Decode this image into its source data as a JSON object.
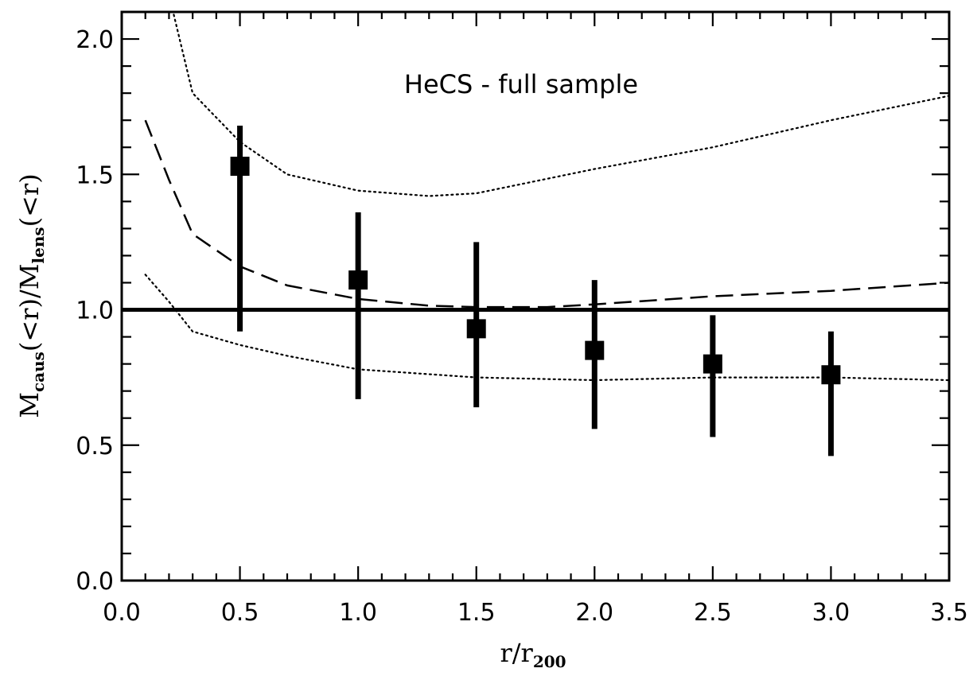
{
  "chart_data": {
    "type": "scatter",
    "annotation": "HeCS - full sample",
    "xlabel": {
      "main": "r/r",
      "sub": "200"
    },
    "ylabel": {
      "part1": "M",
      "sub1": "caus",
      "part2": "(<r)/M",
      "sub2": "lens",
      "part3": "(<r)"
    },
    "xlim": [
      0.0,
      3.5
    ],
    "ylim": [
      0.0,
      2.1
    ],
    "x_ticks": [
      0.0,
      0.5,
      1.0,
      1.5,
      2.0,
      2.5,
      3.0,
      3.5
    ],
    "x_tick_labels": [
      "0.0",
      "0.5",
      "1.0",
      "1.5",
      "2.0",
      "2.5",
      "3.0",
      "3.5"
    ],
    "x_minor_step": 0.1,
    "y_ticks": [
      0.0,
      0.5,
      1.0,
      1.5,
      2.0
    ],
    "y_tick_labels": [
      "0.0",
      "0.5",
      "1.0",
      "1.5",
      "2.0"
    ],
    "y_minor_step": 0.1,
    "grid": false,
    "series": [
      {
        "style": "square-with-errorbars",
        "points": [
          {
            "x": 0.5,
            "y": 1.53,
            "ylo": 0.92,
            "yhi": 1.68
          },
          {
            "x": 1.0,
            "y": 1.11,
            "ylo": 0.67,
            "yhi": 1.36
          },
          {
            "x": 1.5,
            "y": 0.93,
            "ylo": 0.64,
            "yhi": 1.25
          },
          {
            "x": 2.0,
            "y": 0.85,
            "ylo": 0.56,
            "yhi": 1.11
          },
          {
            "x": 2.5,
            "y": 0.8,
            "ylo": 0.53,
            "yhi": 0.98
          },
          {
            "x": 3.0,
            "y": 0.76,
            "ylo": 0.46,
            "yhi": 0.92
          }
        ]
      },
      {
        "style": "solid-reference",
        "x": [
          0.0,
          3.5
        ],
        "y": [
          1.0,
          1.0
        ]
      },
      {
        "style": "dashed",
        "x": [
          0.1,
          0.2,
          0.3,
          0.5,
          0.7,
          1.0,
          1.3,
          1.5,
          1.8,
          2.0,
          2.5,
          3.0,
          3.5
        ],
        "y": [
          1.7,
          1.48,
          1.28,
          1.16,
          1.09,
          1.04,
          1.015,
          1.01,
          1.01,
          1.02,
          1.05,
          1.07,
          1.1
        ]
      },
      {
        "style": "dotted-upper",
        "x": [
          0.22,
          0.3,
          0.5,
          0.7,
          1.0,
          1.3,
          1.5,
          2.0,
          2.5,
          3.0,
          3.5
        ],
        "y": [
          2.09,
          1.8,
          1.62,
          1.5,
          1.44,
          1.42,
          1.43,
          1.52,
          1.6,
          1.7,
          1.79
        ],
        "y_at_cut": 2.09
      },
      {
        "style": "dotted-lower",
        "x": [
          0.1,
          0.2,
          0.3,
          0.5,
          0.7,
          1.0,
          1.5,
          2.0,
          2.5,
          3.0,
          3.5
        ],
        "y": [
          1.13,
          1.03,
          0.92,
          0.87,
          0.83,
          0.78,
          0.75,
          0.74,
          0.75,
          0.75,
          0.74
        ]
      }
    ]
  }
}
